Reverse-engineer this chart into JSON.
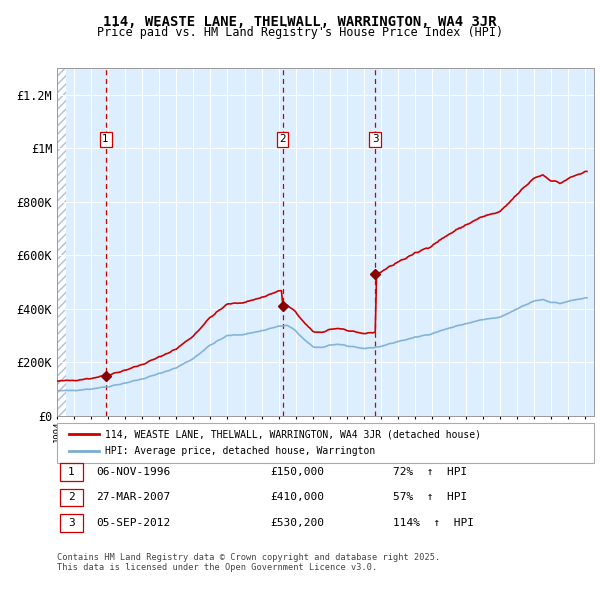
{
  "title": "114, WEASTE LANE, THELWALL, WARRINGTON, WA4 3JR",
  "subtitle": "Price paid vs. HM Land Registry's House Price Index (HPI)",
  "legend_label_red": "114, WEASTE LANE, THELWALL, WARRINGTON, WA4 3JR (detached house)",
  "legend_label_blue": "HPI: Average price, detached house, Warrington",
  "footer1": "Contains HM Land Registry data © Crown copyright and database right 2025.",
  "footer2": "This data is licensed under the Open Government Licence v3.0.",
  "transactions": [
    {
      "num": 1,
      "date": "06-NOV-1996",
      "price": 150000,
      "pct": "72%",
      "dir": "↑",
      "x": 1996.85
    },
    {
      "num": 2,
      "date": "27-MAR-2007",
      "price": 410000,
      "pct": "57%",
      "dir": "↑",
      "x": 2007.23
    },
    {
      "num": 3,
      "date": "05-SEP-2012",
      "price": 530200,
      "pct": "114%",
      "dir": "↑",
      "x": 2012.67
    }
  ],
  "xmin": 1994.0,
  "xmax": 2025.5,
  "ymin": 0,
  "ymax": 1300000,
  "yticks": [
    0,
    200000,
    400000,
    600000,
    800000,
    1000000,
    1200000
  ],
  "ytick_labels": [
    "£0",
    "£200K",
    "£400K",
    "£600K",
    "£800K",
    "£1M",
    "£1.2M"
  ],
  "background_color": "#ddeeff",
  "hatch_color": "#b0b8c8",
  "grid_color": "#ffffff",
  "red_line_color": "#cc0000",
  "blue_line_color": "#7aadd4",
  "red_dot_color": "#880000",
  "transaction_vline_color": "#cc0000"
}
